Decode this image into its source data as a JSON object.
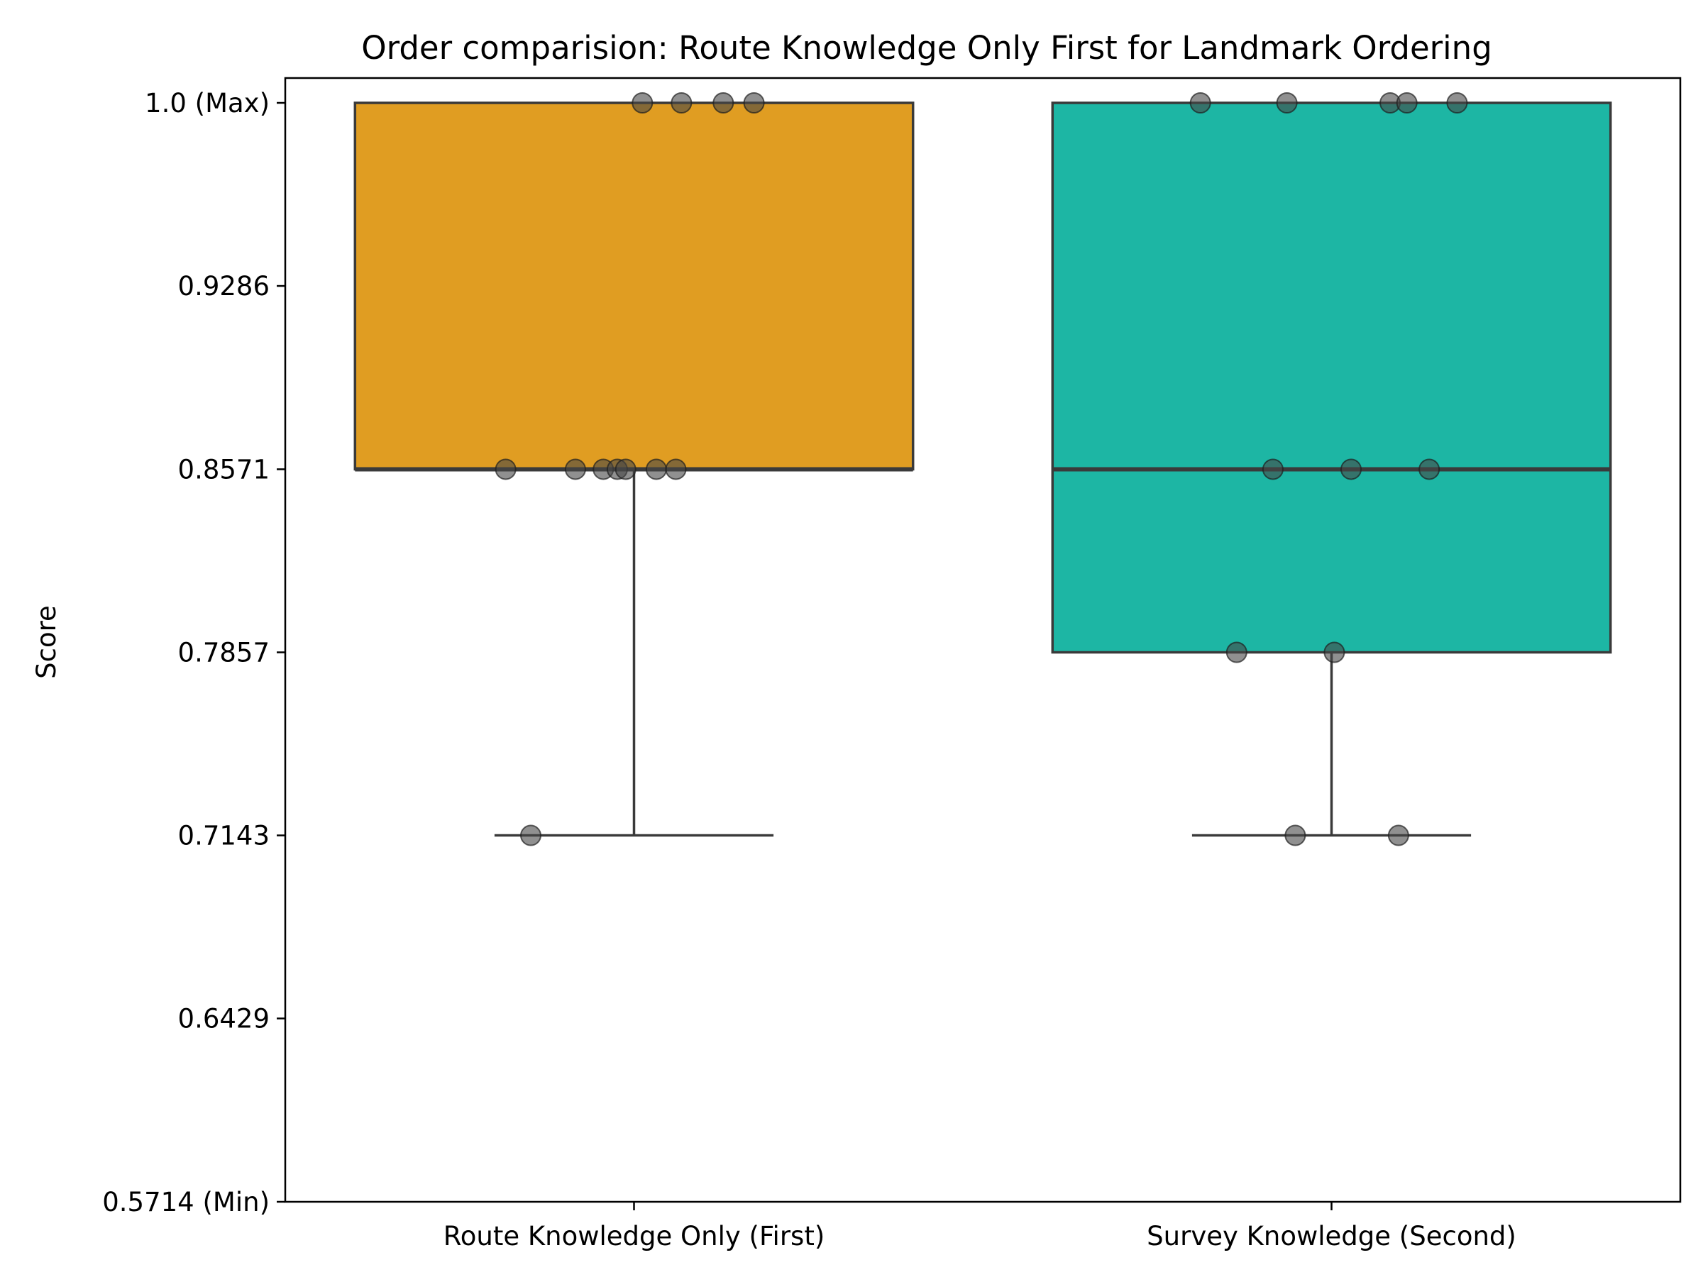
{
  "chart_data": {
    "type": "box",
    "title": "Order comparision: Route Knowledge Only First for Landmark Ordering",
    "xlabel": "",
    "ylabel": "Score",
    "ylim": [
      0.5714,
      1.0
    ],
    "yticks": [
      {
        "value": 1.0,
        "label": "1.0 (Max)"
      },
      {
        "value": 0.9286,
        "label": "0.9286"
      },
      {
        "value": 0.8571,
        "label": "0.8571"
      },
      {
        "value": 0.7857,
        "label": "0.7857"
      },
      {
        "value": 0.7143,
        "label": "0.7143"
      },
      {
        "value": 0.6429,
        "label": "0.6429"
      },
      {
        "value": 0.5714,
        "label": "0.5714 (Min)"
      }
    ],
    "grid": false,
    "legend": "none",
    "categories": [
      "Route Knowledge Only (First)",
      "Survey Knowledge (Second)"
    ],
    "boxes": [
      {
        "category": "Route Knowledge Only (First)",
        "color": "#E09D22",
        "whisker_low": 0.7143,
        "q1": 0.8571,
        "median": 0.8571,
        "q3": 1.0,
        "whisker_high": 1.0,
        "points": [
          1.0,
          1.0,
          1.0,
          1.0,
          0.8571,
          0.8571,
          0.8571,
          0.8571,
          0.8571,
          0.8571,
          0.8571,
          0.7143
        ]
      },
      {
        "category": "Survey Knowledge (Second)",
        "color": "#1DB6A4",
        "whisker_low": 0.7143,
        "q1": 0.7857,
        "median": 0.8571,
        "q3": 1.0,
        "whisker_high": 1.0,
        "points": [
          1.0,
          1.0,
          1.0,
          1.0,
          1.0,
          0.8571,
          0.8571,
          0.8571,
          0.7857,
          0.7857,
          0.7143,
          0.7143
        ]
      }
    ]
  }
}
